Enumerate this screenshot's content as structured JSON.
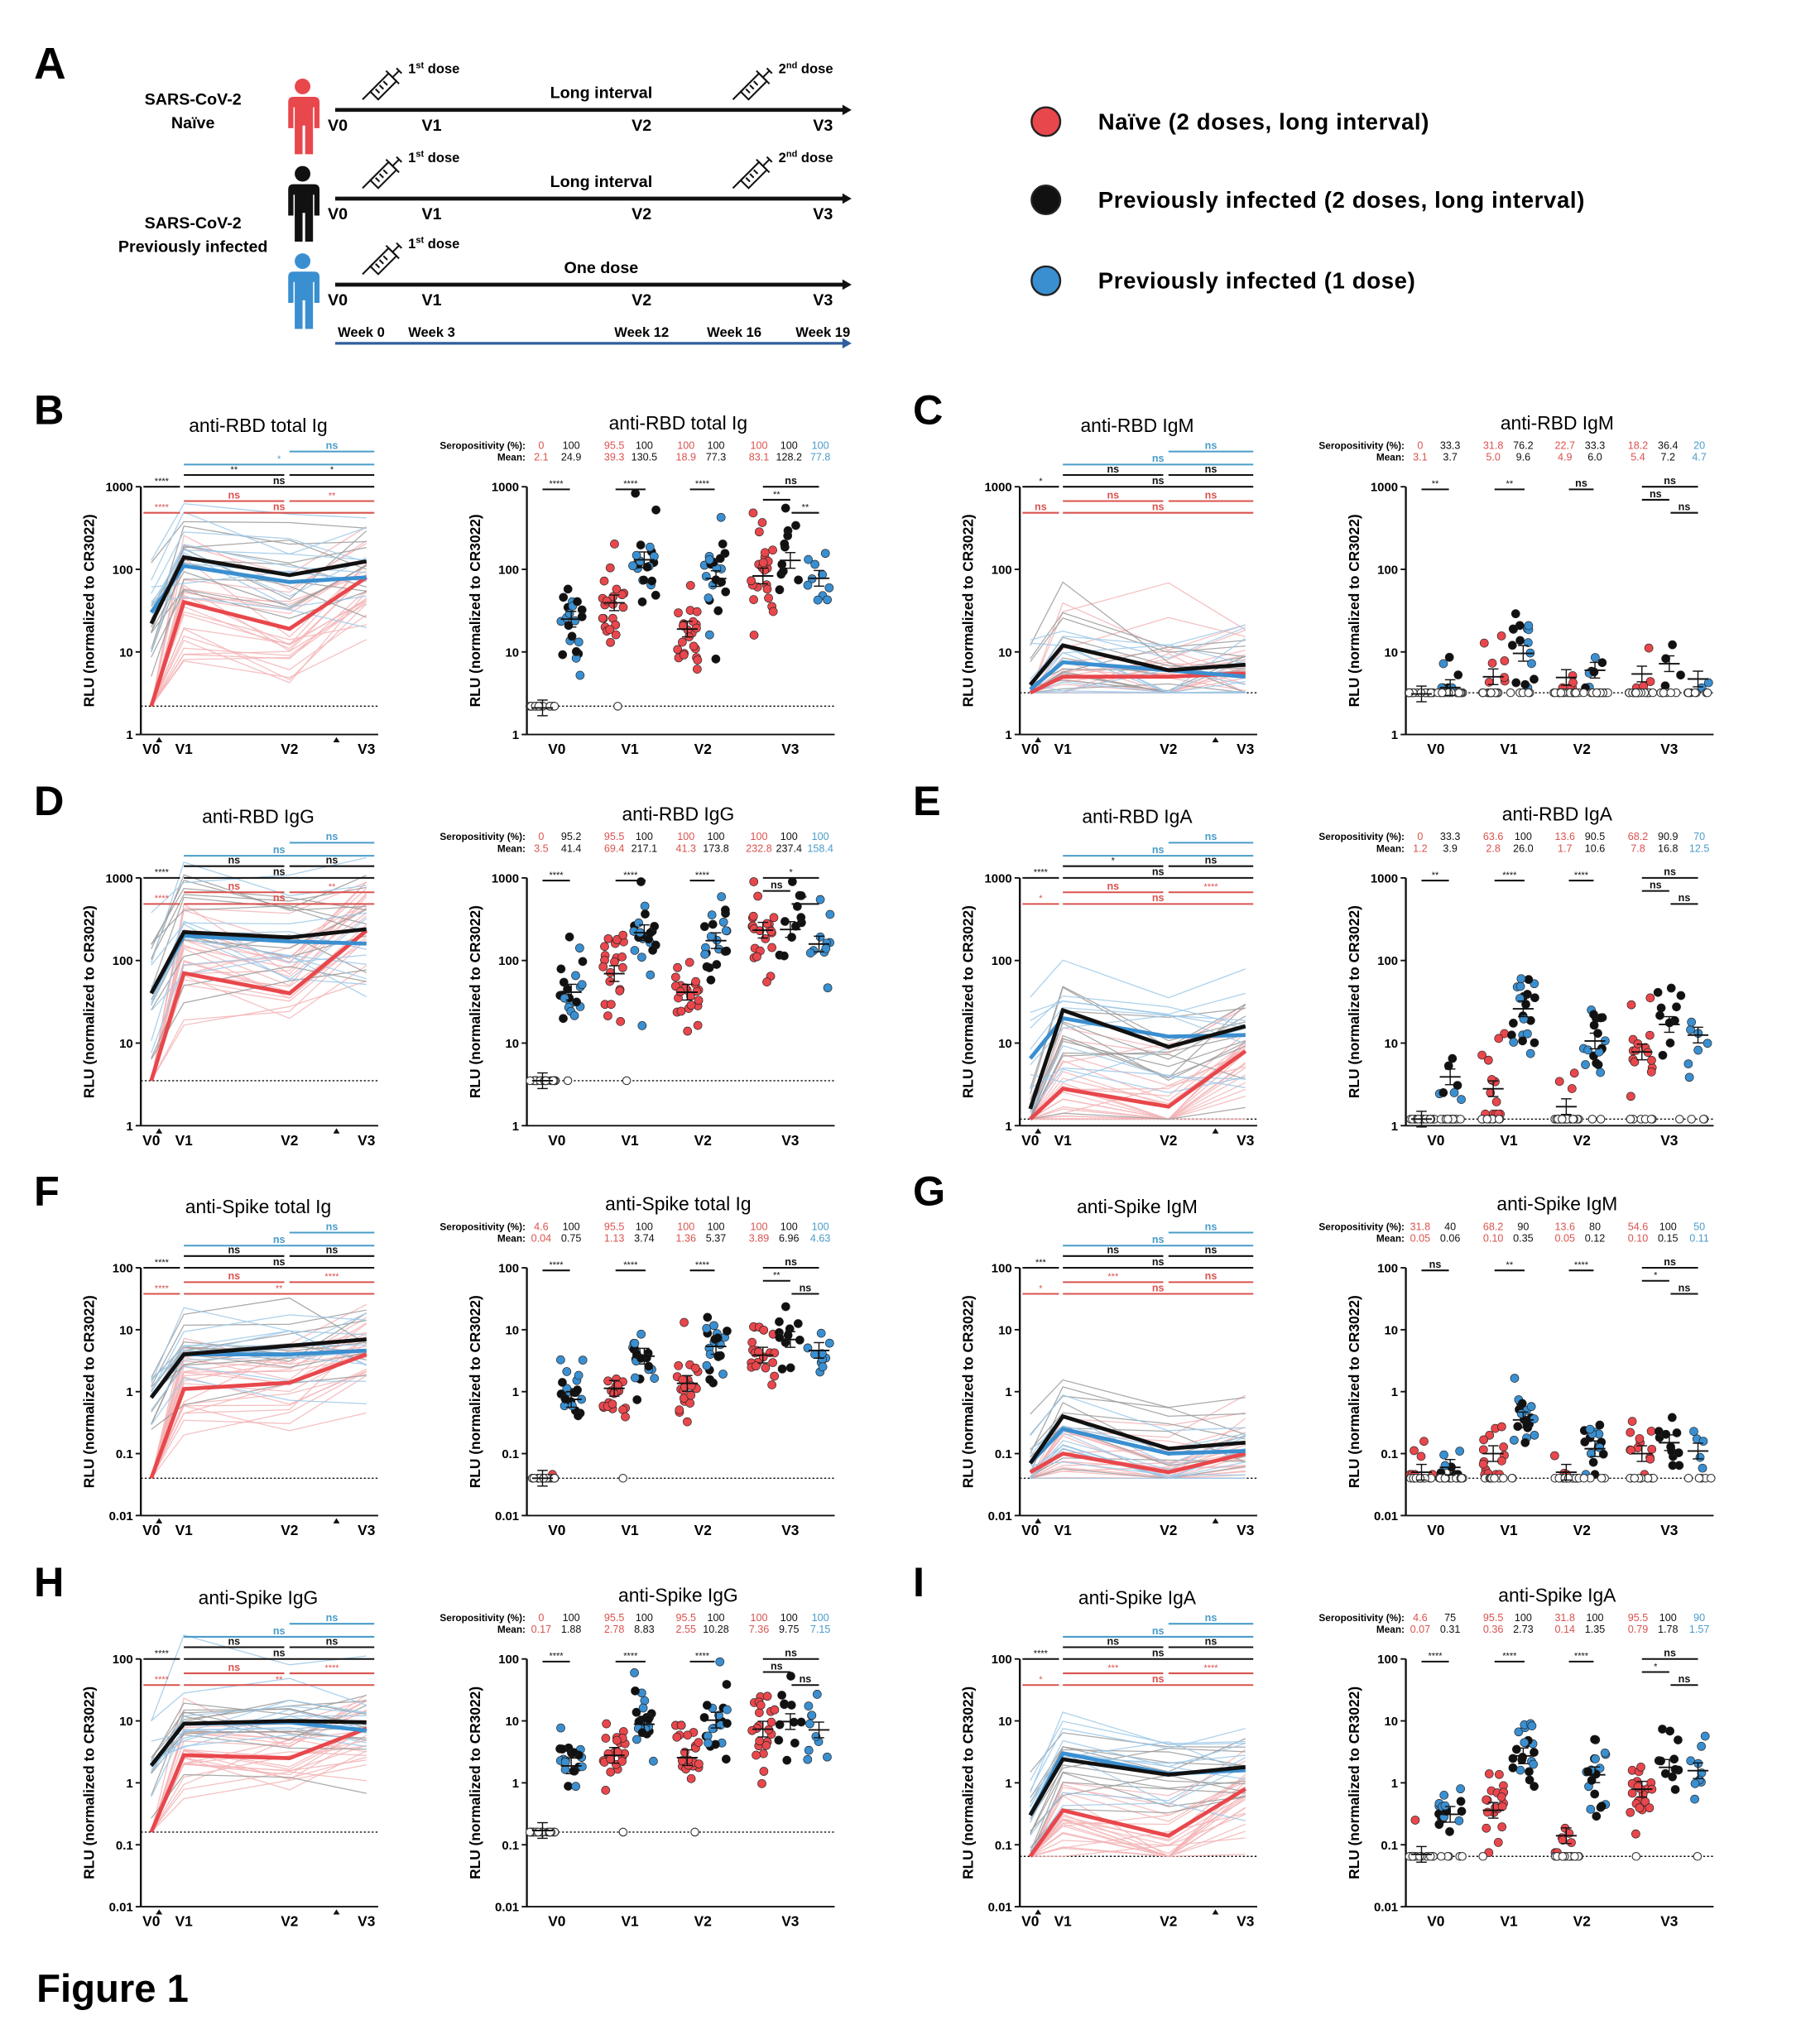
{
  "figure_label": "Figure 1",
  "panel_a": {
    "letter": "A",
    "naive_label": [
      "SARS-CoV-2",
      "Naïve"
    ],
    "infected_label": [
      "SARS-CoV-2",
      "Previously infected"
    ],
    "timepoints": [
      "V0",
      "V1",
      "V2",
      "V3"
    ],
    "dose1": {
      "num": "1",
      "sup": "st",
      "text": " dose"
    },
    "dose2": {
      "num": "2",
      "sup": "nd",
      "text": " dose"
    },
    "interval_long": "Long interval",
    "interval_one": "One dose",
    "weeks": [
      "Week 0",
      "Week 3",
      "Week 12",
      "Week 16",
      "Week 19"
    ],
    "colors": {
      "naive": "#e8474c",
      "prev2": "#111111",
      "prev1": "#3a8fd0",
      "week_axis": "#2f5f9e"
    }
  },
  "legend": [
    {
      "label": "Naïve (2 doses, long interval)",
      "color": "#e8474c"
    },
    {
      "label": "Previously infected (2 doses, long interval)",
      "color": "#111111"
    },
    {
      "label": "Previously infected (1 dose)",
      "color": "#3a8fd0"
    }
  ],
  "common": {
    "ylabel": "RLU (normalized to CR3022)",
    "sero_label": "Seropositivity (%):",
    "mean_label": "Mean:",
    "x": [
      "V0",
      "V1",
      "V2",
      "V3"
    ]
  },
  "chart_data": [
    {
      "panel": "B",
      "title": "anti-RBD total Ig",
      "type": "line",
      "yscale": "log",
      "ylim": [
        1,
        1000
      ],
      "yticks": [
        "1",
        "10",
        "100",
        "1000"
      ],
      "threshold": 2.2,
      "series": [
        {
          "name": "Naïve (2 doses, long interval)",
          "values": [
            2.2,
            40,
            19,
            80
          ]
        },
        {
          "name": "Previously infected (2 doses, long interval)",
          "values": [
            22,
            140,
            85,
            125
          ]
        },
        {
          "name": "Previously infected (1 dose)",
          "values": [
            30,
            110,
            70,
            80
          ]
        }
      ],
      "stats": {
        "blue_v2_v3": "ns",
        "blue_v1_v3": "*",
        "black_v1_v2": "**",
        "black_v2_v3": "*",
        "black_v0_v1": "****",
        "black_v1_v3": "ns",
        "red_v1_v2": "ns",
        "red_v2_v3": "**",
        "red_v0_v1": "****",
        "red_v1_v3": "ns"
      },
      "dot": {
        "title": "anti-RBD total Ig",
        "seropositivity": [
          "0",
          "100",
          "95.5",
          "100",
          "100",
          "100",
          "100",
          "100",
          "100"
        ],
        "mean": [
          "2.1",
          "24.9",
          "39.3",
          "130.5",
          "18.9",
          "77.3",
          "83.1",
          "128.2",
          "77.8"
        ],
        "stats": {
          "v0": "****",
          "v1": "****",
          "v2": "****",
          "v3_all": "ns",
          "v3_naive_vs_prev2": "**",
          "v3_prev2_vs_prev1": "**"
        }
      }
    },
    {
      "panel": "C",
      "title": "anti-RBD IgM",
      "type": "line",
      "yscale": "log",
      "ylim": [
        1,
        1000
      ],
      "yticks": [
        "1",
        "10",
        "100",
        "1000"
      ],
      "threshold": 3.2,
      "series": [
        {
          "name": "Naïve (2 doses, long interval)",
          "values": [
            3.2,
            5,
            5,
            5.5
          ]
        },
        {
          "name": "Previously infected (2 doses, long interval)",
          "values": [
            4,
            12,
            6,
            7
          ]
        },
        {
          "name": "Previously infected (1 dose)",
          "values": [
            3.5,
            7.5,
            6,
            5
          ]
        }
      ],
      "stats": {
        "blue_v2_v3": "ns",
        "blue_v1_v3": "ns",
        "black_v1_v2": "ns",
        "black_v2_v3": "ns",
        "black_v0_v1": "*",
        "black_v1_v3": "ns",
        "red_v1_v2": "ns",
        "red_v2_v3": "ns",
        "red_v0_v1": "ns",
        "red_v1_v3": "ns"
      },
      "dot": {
        "title": "anti-RBD IgM",
        "seropositivity": [
          "0",
          "33.3",
          "31.8",
          "76.2",
          "22.7",
          "33.3",
          "18.2",
          "36.4",
          "20"
        ],
        "mean": [
          "3.1",
          "3.7",
          "5.0",
          "9.6",
          "4.9",
          "6.0",
          "5.4",
          "7.2",
          "4.7"
        ],
        "stats": {
          "v0": "**",
          "v1": "**",
          "v2": "ns",
          "v3_all": "ns",
          "v3_naive_vs_prev2": "ns",
          "v3_prev2_vs_prev1": "ns"
        }
      }
    },
    {
      "panel": "D",
      "title": "anti-RBD IgG",
      "type": "line",
      "yscale": "log",
      "ylim": [
        1,
        1000
      ],
      "yticks": [
        "1",
        "10",
        "100",
        "1000"
      ],
      "threshold": 3.5,
      "series": [
        {
          "name": "Naïve (2 doses, long interval)",
          "values": [
            3.5,
            70,
            40,
            230
          ]
        },
        {
          "name": "Previously infected (2 doses, long interval)",
          "values": [
            40,
            220,
            190,
            240
          ]
        },
        {
          "name": "Previously infected (1 dose)",
          "values": [
            40,
            200,
            170,
            160
          ]
        }
      ],
      "stats": {
        "blue_v2_v3": "ns",
        "blue_v1_v3": "ns",
        "black_v1_v2": "ns",
        "black_v2_v3": "ns",
        "black_v0_v1": "****",
        "black_v1_v3": "ns",
        "red_v1_v2": "ns",
        "red_v2_v3": "**",
        "red_v0_v1": "****",
        "red_v1_v3": "ns"
      },
      "dot": {
        "title": "anti-RBD IgG",
        "seropositivity": [
          "0",
          "95.2",
          "95.5",
          "100",
          "100",
          "100",
          "100",
          "100",
          "100"
        ],
        "mean": [
          "3.5",
          "41.4",
          "69.4",
          "217.1",
          "41.3",
          "173.8",
          "232.8",
          "237.4",
          "158.4"
        ],
        "stats": {
          "v0": "****",
          "v1": "****",
          "v2": "****",
          "v3_all": "*",
          "v3_naive_vs_prev2": "ns",
          "v3_prev2_vs_prev1": "*"
        }
      }
    },
    {
      "panel": "E",
      "title": "anti-RBD IgA",
      "type": "line",
      "yscale": "log",
      "ylim": [
        1,
        1000
      ],
      "yticks": [
        "1",
        "10",
        "100",
        "1000"
      ],
      "threshold": 1.2,
      "series": [
        {
          "name": "Naïve (2 doses, long interval)",
          "values": [
            1.2,
            2.8,
            1.7,
            8
          ]
        },
        {
          "name": "Previously infected (2 doses, long interval)",
          "values": [
            1.6,
            25,
            9,
            16
          ]
        },
        {
          "name": "Previously infected (1 dose)",
          "values": [
            6.5,
            20,
            12,
            12.5
          ]
        }
      ],
      "stats": {
        "blue_v2_v3": "ns",
        "blue_v1_v3": "ns",
        "black_v1_v2": "*",
        "black_v2_v3": "ns",
        "black_v0_v1": "****",
        "black_v1_v3": "ns",
        "red_v1_v2": "ns",
        "red_v2_v3": "****",
        "red_v0_v1": "*",
        "red_v1_v3": "ns"
      },
      "dot": {
        "title": "anti-RBD IgA",
        "seropositivity": [
          "0",
          "33.3",
          "63.6",
          "100",
          "13.6",
          "90.5",
          "68.2",
          "90.9",
          "70"
        ],
        "mean": [
          "1.2",
          "3.9",
          "2.8",
          "26.0",
          "1.7",
          "10.6",
          "7.8",
          "16.8",
          "12.5"
        ],
        "stats": {
          "v0": "**",
          "v1": "****",
          "v2": "****",
          "v3_all": "ns",
          "v3_naive_vs_prev2": "ns",
          "v3_prev2_vs_prev1": "ns"
        }
      }
    },
    {
      "panel": "F",
      "title": "anti-Spike total Ig",
      "type": "line",
      "yscale": "log",
      "ylim": [
        0.01,
        100
      ],
      "yticks": [
        "0.01",
        "0.1",
        "1",
        "10",
        "100"
      ],
      "threshold": 0.04,
      "series": [
        {
          "name": "Naïve (2 doses, long interval)",
          "values": [
            0.04,
            1.1,
            1.4,
            4
          ]
        },
        {
          "name": "Previously infected (2 doses, long interval)",
          "values": [
            0.8,
            4,
            5.5,
            7
          ]
        },
        {
          "name": "Previously infected (1 dose)",
          "values": [
            0.8,
            4,
            4,
            4.6
          ]
        }
      ],
      "stats": {
        "blue_v2_v3": "ns",
        "blue_v1_v3": "ns",
        "black_v1_v2": "ns",
        "black_v2_v3": "ns",
        "black_v0_v1": "****",
        "black_v1_v3": "ns",
        "red_v1_v2": "ns",
        "red_v2_v3": "****",
        "red_v0_v1": "****",
        "red_v1_v3": "**"
      },
      "dot": {
        "title": "anti-Spike total Ig",
        "seropositivity": [
          "4.6",
          "100",
          "95.5",
          "100",
          "100",
          "100",
          "100",
          "100",
          "100"
        ],
        "mean": [
          "0.04",
          "0.75",
          "1.13",
          "3.74",
          "1.36",
          "5.37",
          "3.89",
          "6.96",
          "4.63"
        ],
        "stats": {
          "v0": "****",
          "v1": "****",
          "v2": "****",
          "v3_all": "ns",
          "v3_naive_vs_prev2": "**",
          "v3_prev2_vs_prev1": "ns"
        }
      }
    },
    {
      "panel": "G",
      "title": "anti-Spike IgM",
      "type": "line",
      "yscale": "log",
      "ylim": [
        0.01,
        100
      ],
      "yticks": [
        "0.01",
        "0.1",
        "1",
        "10",
        "100"
      ],
      "threshold": 0.04,
      "series": [
        {
          "name": "Naïve (2 doses, long interval)",
          "values": [
            0.05,
            0.1,
            0.05,
            0.1
          ]
        },
        {
          "name": "Previously infected (2 doses, long interval)",
          "values": [
            0.07,
            0.4,
            0.12,
            0.15
          ]
        },
        {
          "name": "Previously infected (1 dose)",
          "values": [
            0.07,
            0.25,
            0.1,
            0.11
          ]
        }
      ],
      "stats": {
        "blue_v2_v3": "ns",
        "blue_v1_v3": "ns",
        "black_v1_v2": "ns",
        "black_v2_v3": "ns",
        "black_v0_v1": "***",
        "black_v1_v3": "ns",
        "red_v1_v2": "***",
        "red_v2_v3": "ns",
        "red_v0_v1": "*",
        "red_v1_v3": "ns"
      },
      "dot": {
        "title": "anti-Spike IgM",
        "seropositivity": [
          "31.8",
          "40",
          "68.2",
          "90",
          "13.6",
          "80",
          "54.6",
          "100",
          "50"
        ],
        "mean": [
          "0.05",
          "0.06",
          "0.10",
          "0.35",
          "0.05",
          "0.12",
          "0.10",
          "0.15",
          "0.11"
        ],
        "stats": {
          "v0": "ns",
          "v1": "**",
          "v2": "****",
          "v3_all": "ns",
          "v3_naive_vs_prev2": "*",
          "v3_prev2_vs_prev1": "ns"
        }
      }
    },
    {
      "panel": "H",
      "title": "anti-Spike IgG",
      "type": "line",
      "yscale": "log",
      "ylim": [
        0.01,
        100
      ],
      "yticks": [
        "0.01",
        "0.1",
        "1",
        "10",
        "100"
      ],
      "threshold": 0.16,
      "series": [
        {
          "name": "Naïve (2 doses, long interval)",
          "values": [
            0.16,
            2.8,
            2.5,
            7.5
          ]
        },
        {
          "name": "Previously infected (2 doses, long interval)",
          "values": [
            1.9,
            9,
            10,
            9.5
          ]
        },
        {
          "name": "Previously infected (1 dose)",
          "values": [
            1.9,
            9,
            9.5,
            7
          ]
        }
      ],
      "stats": {
        "blue_v2_v3": "ns",
        "blue_v1_v3": "ns",
        "black_v1_v2": "ns",
        "black_v2_v3": "ns",
        "black_v0_v1": "****",
        "black_v1_v3": "ns",
        "red_v1_v2": "ns",
        "red_v2_v3": "****",
        "red_v0_v1": "****",
        "red_v1_v3": "**"
      },
      "dot": {
        "title": "anti-Spike IgG",
        "seropositivity": [
          "0",
          "100",
          "95.5",
          "100",
          "95.5",
          "100",
          "100",
          "100",
          "100"
        ],
        "mean": [
          "0.17",
          "1.88",
          "2.78",
          "8.83",
          "2.55",
          "10.28",
          "7.36",
          "9.75",
          "7.15"
        ],
        "stats": {
          "v0": "****",
          "v1": "****",
          "v2": "****",
          "v3_all": "ns",
          "v3_naive_vs_prev2": "ns",
          "v3_prev2_vs_prev1": "ns"
        }
      }
    },
    {
      "panel": "I",
      "title": "anti-Spike IgA",
      "type": "line",
      "yscale": "log",
      "ylim": [
        0.01,
        100
      ],
      "yticks": [
        "0.01",
        "0.1",
        "1",
        "10",
        "100"
      ],
      "threshold": 0.065,
      "series": [
        {
          "name": "Naïve (2 doses, long interval)",
          "values": [
            0.065,
            0.36,
            0.14,
            0.8
          ]
        },
        {
          "name": "Previously infected (2 doses, long interval)",
          "values": [
            0.3,
            2.4,
            1.35,
            1.8
          ]
        },
        {
          "name": "Previously infected (1 dose)",
          "values": [
            0.3,
            3,
            1.4,
            1.6
          ]
        }
      ],
      "stats": {
        "blue_v2_v3": "ns",
        "blue_v1_v3": "ns",
        "black_v1_v2": "ns",
        "black_v2_v3": "ns",
        "black_v0_v1": "****",
        "black_v1_v3": "ns",
        "red_v1_v2": "***",
        "red_v2_v3": "****",
        "red_v0_v1": "*",
        "red_v1_v3": "ns"
      },
      "dot": {
        "title": "anti-Spike IgA",
        "seropositivity": [
          "4.6",
          "75",
          "95.5",
          "100",
          "31.8",
          "100",
          "95.5",
          "100",
          "90"
        ],
        "mean": [
          "0.07",
          "0.31",
          "0.36",
          "2.73",
          "0.14",
          "1.35",
          "0.79",
          "1.78",
          "1.57"
        ],
        "stats": {
          "v0": "****",
          "v1": "****",
          "v2": "****",
          "v3_all": "ns",
          "v3_naive_vs_prev2": "*",
          "v3_prev2_vs_prev1": "ns"
        }
      }
    }
  ]
}
